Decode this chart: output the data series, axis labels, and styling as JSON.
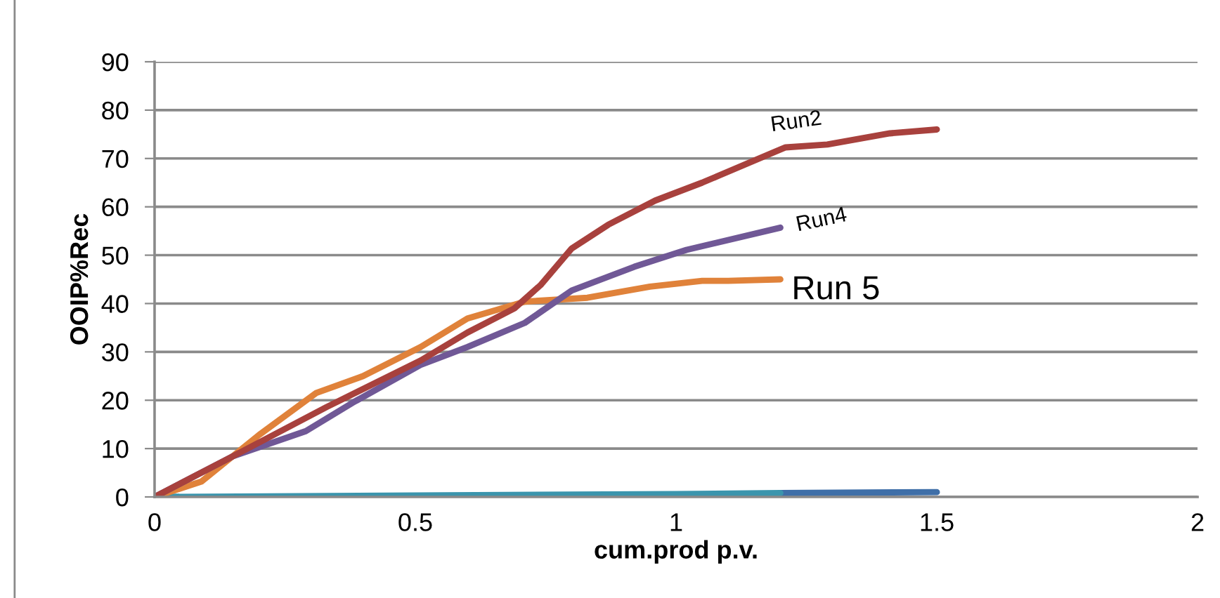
{
  "chart_data": {
    "type": "line",
    "xlabel": "cum.prod p.v.",
    "ylabel": "OOIP%Rec",
    "xlim": [
      0,
      2
    ],
    "xticks": [
      0,
      0.5,
      1,
      1.5,
      2
    ],
    "ylim": [
      0,
      90
    ],
    "yticks": [
      0,
      10,
      20,
      30,
      40,
      50,
      60,
      70,
      80,
      90
    ],
    "grid": "y",
    "legend": false,
    "marker": "none",
    "line_style": "solid",
    "series": [
      {
        "color": "#3f6fa8",
        "x": [
          1.2,
          1.5
        ],
        "values": [
          0.8,
          1.0
        ]
      },
      {
        "color": "#3b95ad",
        "x": [
          0,
          0.5,
          1,
          1.2
        ],
        "values": [
          0,
          0.3,
          0.6,
          0.8
        ]
      },
      {
        "name": "Run 5",
        "color": "#e0823a",
        "x": [
          0,
          0.09,
          0.2,
          0.31,
          0.4,
          0.51,
          0.6,
          0.71,
          0.83,
          0.95,
          1.05,
          1.1,
          1.2
        ],
        "values": [
          0,
          3.2,
          12.8,
          21.5,
          25,
          31,
          36.9,
          40.4,
          41.2,
          43.5,
          44.7,
          44.7,
          45
        ]
      },
      {
        "name": "Run4",
        "color": "#705896",
        "x": [
          0,
          0.15,
          0.29,
          0.38,
          0.51,
          0.6,
          0.71,
          0.8,
          0.92,
          1.02,
          1.2
        ],
        "values": [
          0,
          8.4,
          13.6,
          19.5,
          27.3,
          31,
          36,
          42.7,
          47.6,
          51.1,
          55.7
        ]
      },
      {
        "name": "Run2",
        "color": "#a8413d",
        "x": [
          0,
          0.15,
          0.33,
          0.51,
          0.6,
          0.69,
          0.74,
          0.8,
          0.87,
          0.96,
          1.05,
          1.19,
          1.21,
          1.29,
          1.41,
          1.5
        ],
        "values": [
          0,
          8.4,
          18.6,
          28.2,
          34,
          39,
          43.8,
          51.4,
          56.3,
          61.3,
          65,
          71.4,
          72.3,
          72.9,
          75.2,
          76
        ]
      }
    ]
  }
}
